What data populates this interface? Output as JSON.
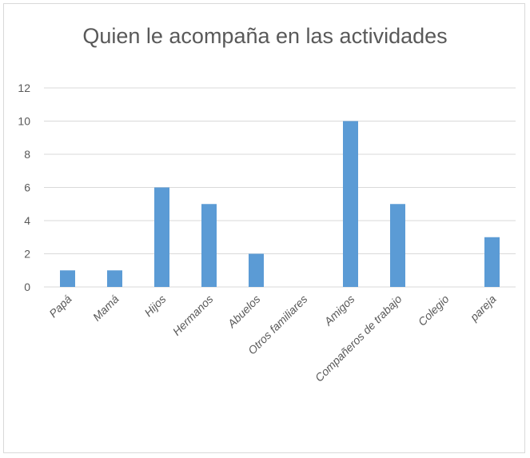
{
  "chart_data": {
    "type": "bar",
    "title": "Quien le acompaña en las actividades",
    "categories": [
      "Papá",
      "Mamá",
      "Hijos",
      "Hermanos",
      "Abuelos",
      "Otros familiares",
      "Amigos",
      "Compañeros de trabajo",
      "Colegio",
      "pareja"
    ],
    "values": [
      1,
      1,
      6,
      5,
      2,
      0,
      10,
      5,
      0,
      3
    ],
    "ylim": [
      0,
      12
    ],
    "yticks": [
      "0",
      "2",
      "4",
      "6",
      "8",
      "10",
      "12"
    ],
    "grid": true,
    "bar_color": "#5b9bd5",
    "grid_color": "#d9d9d9"
  }
}
